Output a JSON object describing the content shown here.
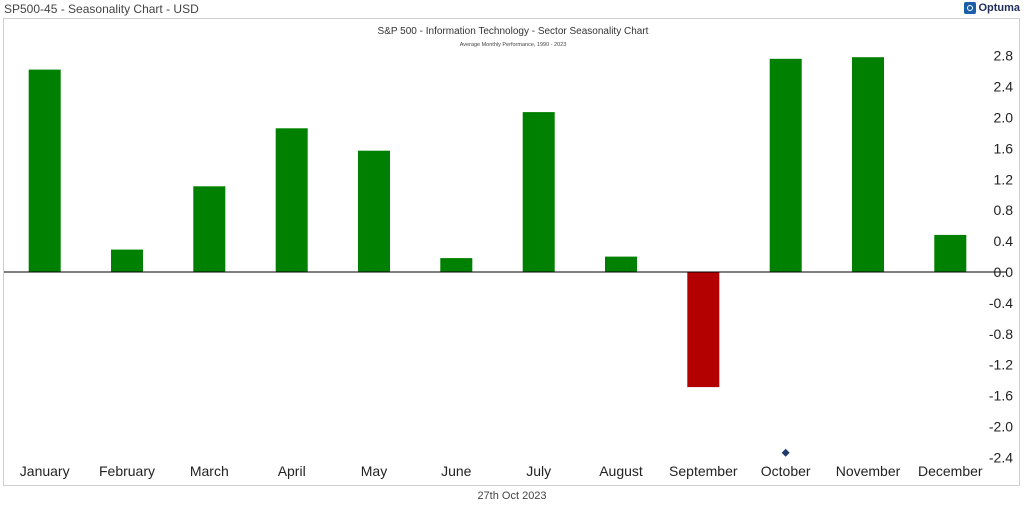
{
  "window": {
    "title": "SP500-45 - Seasonality Chart - USD"
  },
  "brand": {
    "name": "Optuma",
    "logo_icon": "optuma-logo-icon",
    "color": "#1a5fa8"
  },
  "colors": {
    "positive": "#008000",
    "negative": "#b30000",
    "marker": "#1f3a6b"
  },
  "footer": {
    "date": "27th Oct 2023"
  },
  "chart_data": {
    "type": "bar",
    "title": "S&P 500 - Information Technology - Sector Seasonality Chart",
    "subtitle": "Average Monthly Performance, 1990 - 2023",
    "categories": [
      "January",
      "February",
      "March",
      "April",
      "May",
      "June",
      "July",
      "August",
      "September",
      "October",
      "November",
      "December"
    ],
    "values": [
      2.62,
      0.29,
      1.11,
      1.86,
      1.57,
      0.18,
      2.07,
      0.2,
      -1.49,
      2.76,
      2.78,
      0.48
    ],
    "ylim": [
      -2.4,
      3.0
    ],
    "yticks": [
      "2.8",
      "2.4",
      "2.0",
      "1.6",
      "1.2",
      "0.8",
      "0.4",
      "0.0",
      "-0.4",
      "-0.8",
      "-1.2",
      "-1.6",
      "-2.0",
      "-2.4"
    ],
    "yaxis_position": "right",
    "grid": false,
    "marker": {
      "category": "October",
      "y": -2.34,
      "shape": "diamond"
    }
  }
}
